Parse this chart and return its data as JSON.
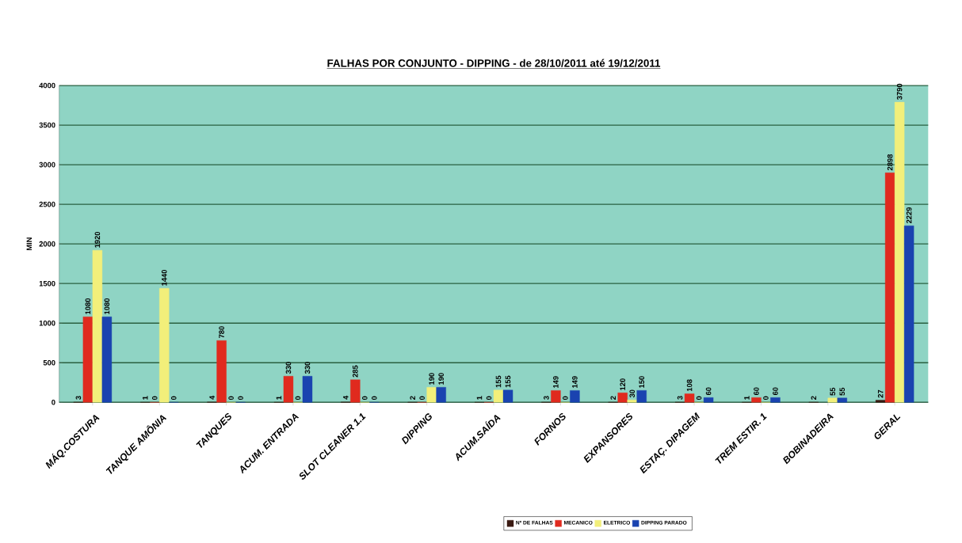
{
  "chart_data": {
    "type": "bar",
    "title": "FALHAS POR CONJUNTO - DIPPING - de 28/10/2011 até 19/12/2011",
    "ylabel": "MIN",
    "categories": [
      "MÁQ.COSTURA",
      "TANQUE AMÔNIA",
      "TANQUES",
      "ACUM. ENTRADA",
      "SLOT CLEANER 1.1",
      "DIPPING",
      "ACUM.SAÍDA",
      "FORNOS",
      "EXPANSORES",
      "ESTAÇ. DIPAGEM",
      "TREM ESTIR. 1",
      "BOBINADEIRA",
      "GERAL"
    ],
    "series": [
      {
        "name": "Nº DE FALHAS",
        "color": "#3a1a12",
        "values": [
          3,
          1,
          4,
          1,
          4,
          2,
          1,
          3,
          2,
          3,
          1,
          2,
          27
        ]
      },
      {
        "name": "MECANICO",
        "color": "#e02a1e",
        "values": [
          1080,
          0,
          780,
          330,
          285,
          0,
          0,
          149,
          120,
          108,
          60,
          null,
          2898
        ]
      },
      {
        "name": "ELETRICO",
        "color": "#f2ef7a",
        "values": [
          1920,
          1440,
          0,
          0,
          0,
          190,
          155,
          0,
          30,
          0,
          0,
          55,
          3790
        ]
      },
      {
        "name": "DIPPING PARADO",
        "color": "#1a43b0",
        "values": [
          1080,
          0,
          0,
          330,
          0,
          190,
          155,
          149,
          150,
          60,
          60,
          55,
          2229
        ]
      }
    ],
    "ylim": [
      0,
      4000
    ],
    "yticks": [
      0,
      500,
      1000,
      1500,
      2000,
      2500,
      3000,
      3500,
      4000
    ],
    "grid": "y",
    "legend": "bottom",
    "data_labels": true
  }
}
